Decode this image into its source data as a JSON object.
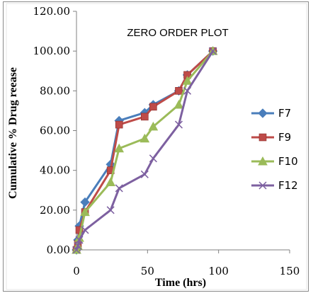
{
  "chart_data": {
    "type": "line",
    "title": "ZERO ORDER PLOT",
    "xlabel": "Time (hrs)",
    "ylabel": "Cumulative % Drug reease",
    "xlim": [
      0,
      150
    ],
    "ylim": [
      0,
      120
    ],
    "x_ticks": [
      "0",
      "50",
      "100",
      "150"
    ],
    "y_ticks": [
      "0.00",
      "20.00",
      "40.00",
      "60.00",
      "80.00",
      "100.00",
      "120.00"
    ],
    "grid": false,
    "legend_position": "right",
    "series": [
      {
        "name": "F7",
        "color": "#4a7ebb",
        "marker": "diamond",
        "x": [
          0,
          1,
          2,
          6,
          24,
          30,
          48,
          54,
          72,
          78,
          96
        ],
        "y": [
          0,
          5,
          12,
          24,
          43,
          65,
          69,
          73,
          80,
          88,
          100
        ]
      },
      {
        "name": "F9",
        "color": "#be4b48",
        "marker": "square",
        "x": [
          0,
          1,
          2,
          6,
          24,
          30,
          48,
          54,
          72,
          78,
          96
        ],
        "y": [
          0,
          3,
          10,
          19,
          40,
          63,
          67,
          72,
          80,
          88,
          100
        ]
      },
      {
        "name": "F10",
        "color": "#9bbb59",
        "marker": "triangle",
        "x": [
          0,
          1,
          2,
          6,
          24,
          30,
          48,
          54,
          72,
          78,
          96
        ],
        "y": [
          0,
          2,
          6,
          19,
          34,
          51,
          56,
          62,
          73,
          85,
          100
        ]
      },
      {
        "name": "F12",
        "color": "#7d60a0",
        "marker": "x",
        "x": [
          0,
          1,
          2,
          6,
          24,
          30,
          48,
          54,
          72,
          78,
          96
        ],
        "y": [
          0,
          2,
          5,
          10,
          20,
          31,
          38,
          46,
          63,
          80,
          100
        ]
      }
    ]
  }
}
